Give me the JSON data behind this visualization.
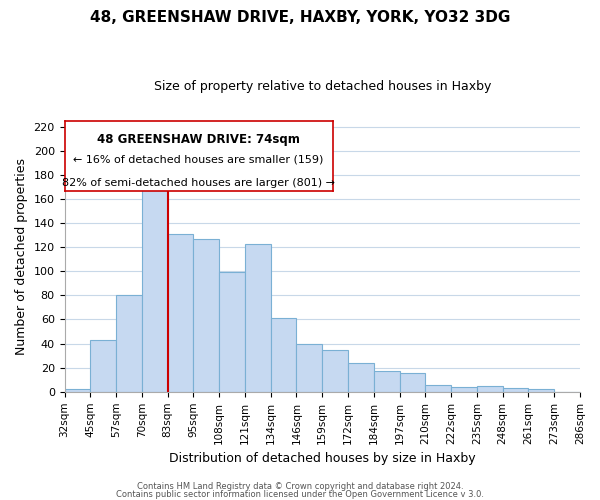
{
  "title": "48, GREENSHAW DRIVE, HAXBY, YORK, YO32 3DG",
  "subtitle": "Size of property relative to detached houses in Haxby",
  "xlabel": "Distribution of detached houses by size in Haxby",
  "ylabel": "Number of detached properties",
  "bar_labels": [
    "32sqm",
    "45sqm",
    "57sqm",
    "70sqm",
    "83sqm",
    "95sqm",
    "108sqm",
    "121sqm",
    "134sqm",
    "146sqm",
    "159sqm",
    "172sqm",
    "184sqm",
    "197sqm",
    "210sqm",
    "222sqm",
    "235sqm",
    "248sqm",
    "261sqm",
    "273sqm",
    "286sqm"
  ],
  "bar_values": [
    2,
    43,
    80,
    171,
    131,
    127,
    99,
    123,
    61,
    40,
    35,
    24,
    17,
    16,
    6,
    4,
    5,
    3,
    2,
    0
  ],
  "bar_color": "#c6d9f1",
  "bar_edge_color": "#7ab0d4",
  "ylim": [
    0,
    225
  ],
  "yticks": [
    0,
    20,
    40,
    60,
    80,
    100,
    120,
    140,
    160,
    180,
    200,
    220
  ],
  "vline_color": "#cc0000",
  "annotation_title": "48 GREENSHAW DRIVE: 74sqm",
  "annotation_line1": "← 16% of detached houses are smaller (159)",
  "annotation_line2": "82% of semi-detached houses are larger (801) →",
  "footer1": "Contains HM Land Registry data © Crown copyright and database right 2024.",
  "footer2": "Contains public sector information licensed under the Open Government Licence v 3.0.",
  "bg_color": "#ffffff",
  "grid_color": "#c8d8e8"
}
